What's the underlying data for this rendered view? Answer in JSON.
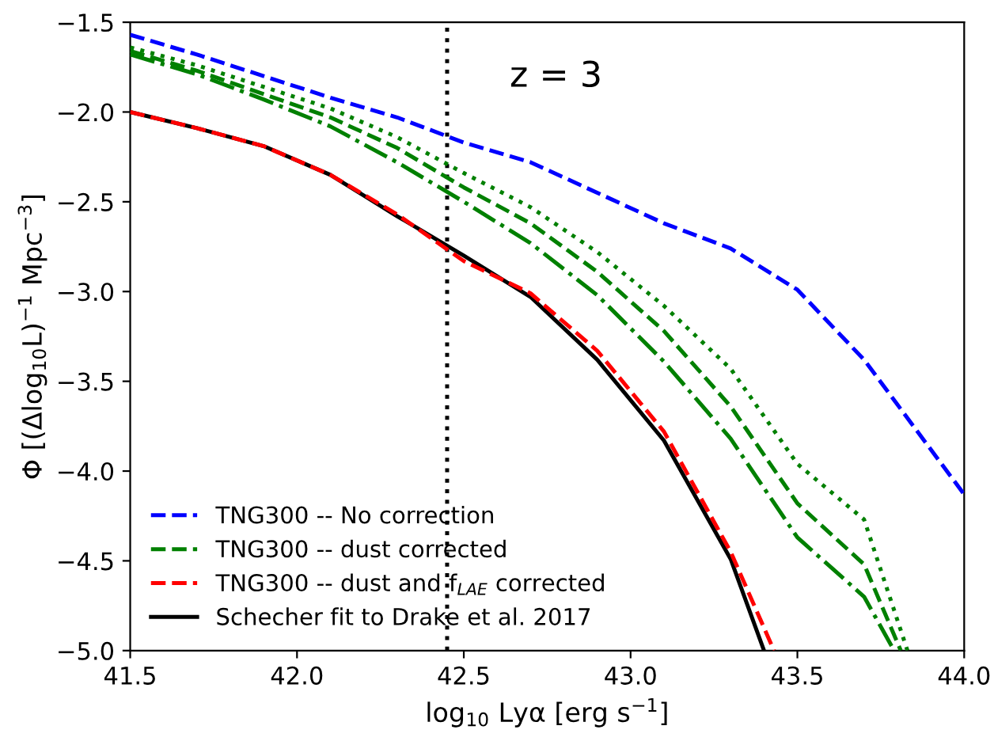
{
  "chart_data": {
    "type": "line",
    "xlabel": "log$_{10}$ Lyα [erg s$^{−1}$]",
    "ylabel": "Φ [(Δlog$_{10}$L)$^{−1}$ Mpc$^{−3}$]",
    "xlim": [
      41.5,
      44.0
    ],
    "ylim": [
      -5.0,
      -1.5
    ],
    "xticks": [
      41.5,
      {
        "value": 42,
        "label": "42.0"
      },
      42.5,
      {
        "value": 43,
        "label": "43.0"
      },
      43.5,
      {
        "value": 44,
        "label": "44.0"
      }
    ],
    "yticks": [
      {
        "value": -5,
        "label": "−5.0"
      },
      -4.5,
      {
        "value": -4,
        "label": "−4.0"
      },
      -3.5,
      {
        "value": -3,
        "label": "−3.0"
      },
      -2.5,
      {
        "value": -2,
        "label": "−2.0"
      },
      -1.5
    ],
    "grid": false,
    "legend": "bottom left",
    "marker": "none",
    "annotations": [
      "z = 3"
    ],
    "ref_lines": [
      {
        "axis": "x",
        "value": 42.45,
        "color": "#000000",
        "line_style": "dotted"
      }
    ],
    "series": [
      {
        "name": "TNG300 -- No correction",
        "color": "#0000ff",
        "line_style": "dashed",
        "x": [
          41.5,
          41.7,
          41.9,
          42.1,
          42.3,
          42.5,
          42.7,
          42.9,
          43.1,
          43.3,
          43.5,
          43.7,
          43.9,
          44.0
        ],
        "values": [
          -1.57,
          -1.68,
          -1.8,
          -1.92,
          -2.03,
          -2.17,
          -2.28,
          -2.45,
          -2.62,
          -2.76,
          -2.99,
          -3.38,
          -3.88,
          -4.13
        ]
      },
      {
        "name": "TNG300 -- dust corrected",
        "color": "#008000",
        "line_style": "dashed",
        "x": [
          41.5,
          41.7,
          41.9,
          42.1,
          42.3,
          42.5,
          42.7,
          42.9,
          43.1,
          43.3,
          43.5,
          43.7,
          43.81
        ],
        "values": [
          -1.66,
          -1.77,
          -1.9,
          -2.03,
          -2.2,
          -2.42,
          -2.62,
          -2.89,
          -3.22,
          -3.64,
          -4.18,
          -4.52,
          -5.0
        ]
      },
      {
        "color": "#008000",
        "line_style": "dotted",
        "x": [
          41.5,
          41.7,
          41.9,
          42.1,
          42.3,
          42.5,
          42.7,
          42.9,
          43.1,
          43.3,
          43.5,
          43.7,
          43.83
        ],
        "values": [
          -1.64,
          -1.74,
          -1.86,
          -1.98,
          -2.14,
          -2.34,
          -2.53,
          -2.78,
          -3.08,
          -3.43,
          -3.96,
          -4.27,
          -5.0
        ]
      },
      {
        "color": "#008000",
        "line_style": "dashdot",
        "x": [
          41.5,
          41.7,
          41.9,
          42.1,
          42.3,
          42.5,
          42.7,
          42.9,
          43.1,
          43.3,
          43.5,
          43.7,
          43.79
        ],
        "values": [
          -1.68,
          -1.79,
          -1.93,
          -2.08,
          -2.28,
          -2.5,
          -2.73,
          -3.02,
          -3.39,
          -3.82,
          -4.37,
          -4.7,
          -5.0
        ]
      },
      {
        "name": "TNG300 -- dust and f$_{LAE}$ corrected",
        "color": "#ff0000",
        "line_style": "dashed",
        "x": [
          41.5,
          41.7,
          41.9,
          42.1,
          42.3,
          42.5,
          42.7,
          42.9,
          43.1,
          43.3,
          43.43
        ],
        "values": [
          -2.0,
          -2.09,
          -2.19,
          -2.35,
          -2.57,
          -2.83,
          -3.01,
          -3.33,
          -3.78,
          -4.45,
          -5.0
        ]
      },
      {
        "name": "Schecher fit to Drake et al. 2017",
        "color": "#000000",
        "line_style": "solid",
        "x": [
          41.5,
          41.7,
          41.9,
          42.1,
          42.3,
          42.5,
          42.7,
          42.9,
          43.1,
          43.3,
          43.4
        ],
        "values": [
          -2.0,
          -2.09,
          -2.19,
          -2.35,
          -2.58,
          -2.8,
          -3.03,
          -3.38,
          -3.83,
          -4.49,
          -5.0
        ]
      }
    ]
  }
}
